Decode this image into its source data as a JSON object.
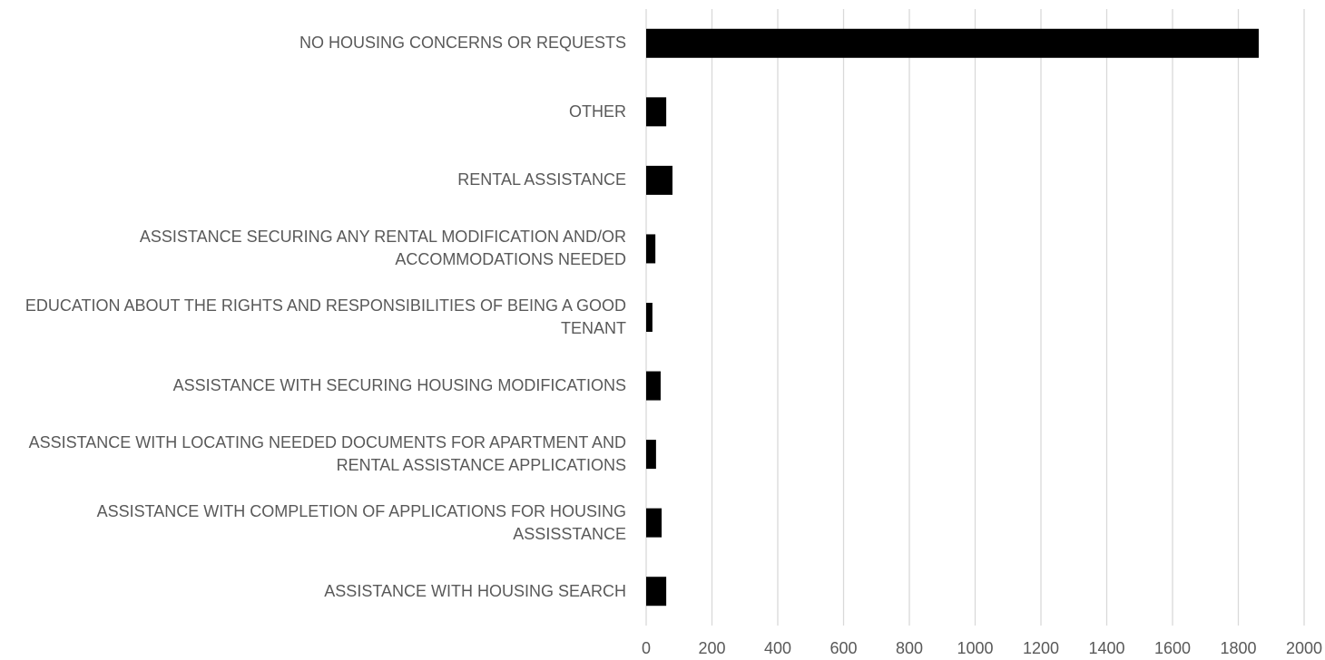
{
  "chart_data": {
    "type": "bar",
    "orientation": "horizontal",
    "categories": [
      "NO HOUSING CONCERNS OR REQUESTS",
      "OTHER",
      "RENTAL ASSISTANCE",
      "ASSISTANCE SECURING ANY RENTAL MODIFICATION AND/OR ACCOMMODATIONS NEEDED",
      "EDUCATION ABOUT THE RIGHTS AND RESPONSIBILITIES OF BEING A GOOD TENANT",
      "ASSISTANCE WITH SECURING HOUSING MODIFICATIONS",
      "ASSISTANCE WITH LOCATING NEEDED DOCUMENTS FOR APARTMENT AND RENTAL ASSISTANCE APPLICATIONS",
      "ASSISTANCE WITH COMPLETION OF APPLICATIONS FOR HOUSING ASSISSTANCE",
      "ASSISTANCE WITH HOUSING SEARCH"
    ],
    "values": [
      1862,
      61,
      80,
      28,
      19,
      44,
      30,
      47,
      61
    ],
    "color": "#000000",
    "xlim": [
      0,
      2000
    ],
    "xticks": [
      0,
      200,
      400,
      600,
      800,
      1000,
      1200,
      1400,
      1600,
      1800,
      2000
    ],
    "grid": true
  }
}
